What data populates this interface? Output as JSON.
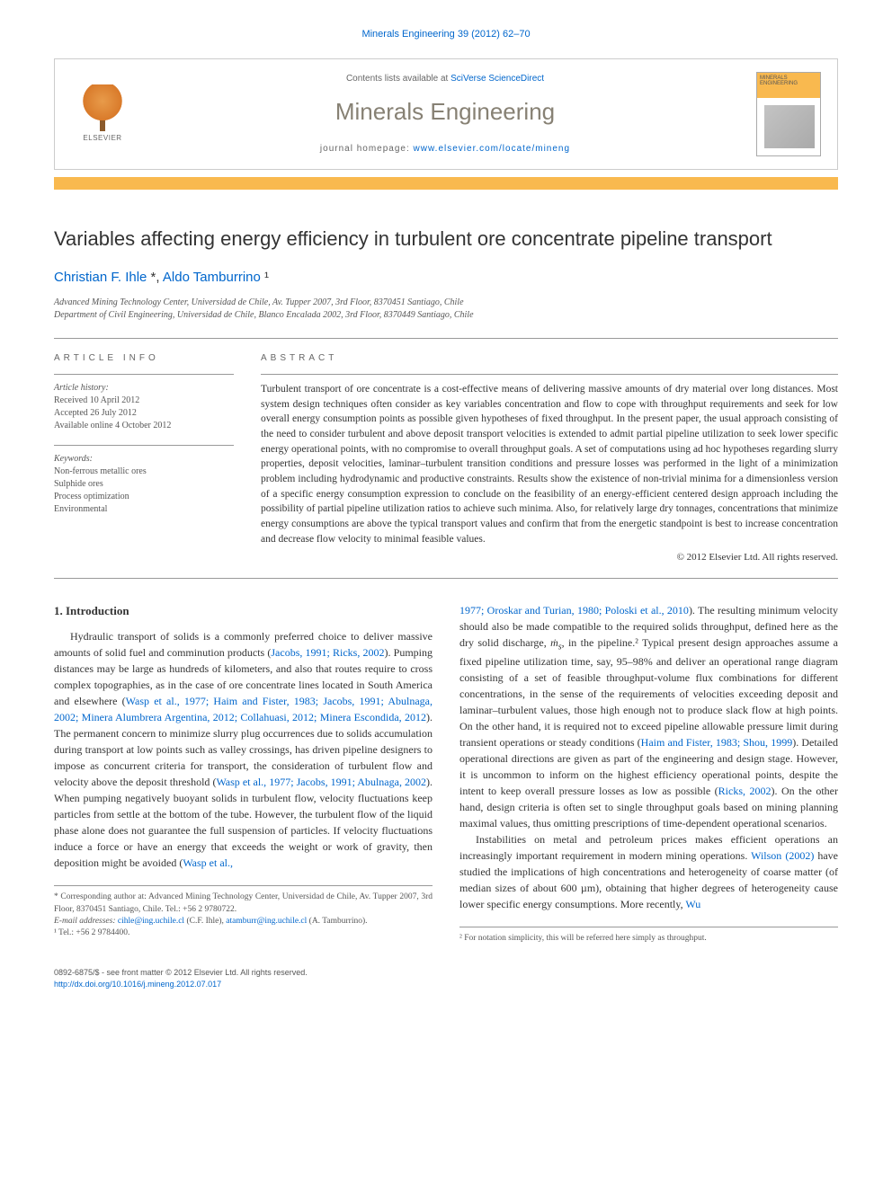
{
  "citation": "Minerals Engineering 39 (2012) 62–70",
  "header": {
    "contentsPrefix": "Contents lists available at ",
    "contentsLink": "SciVerse ScienceDirect",
    "journal": "Minerals Engineering",
    "homepagePrefix": "journal homepage: ",
    "homepageUrl": "www.elsevier.com/locate/mineng",
    "elsevier": "ELSEVIER",
    "coverTitle": "MINERALS ENGINEERING"
  },
  "title": "Variables affecting energy efficiency in turbulent ore concentrate pipeline transport",
  "authors": "Christian F. Ihle *, Aldo Tamburrino ¹",
  "affiliations": [
    "Advanced Mining Technology Center, Universidad de Chile, Av. Tupper 2007, 3rd Floor, 8370451 Santiago, Chile",
    "Department of Civil Engineering, Universidad de Chile, Blanco Encalada 2002, 3rd Floor, 8370449 Santiago, Chile"
  ],
  "labels": {
    "articleInfo": "ARTICLE INFO",
    "abstract": "ABSTRACT",
    "history": "Article history:",
    "keywords": "Keywords:"
  },
  "history": {
    "received": "Received 10 April 2012",
    "accepted": "Accepted 26 July 2012",
    "online": "Available online 4 October 2012"
  },
  "keywords": [
    "Non-ferrous metallic ores",
    "Sulphide ores",
    "Process optimization",
    "Environmental"
  ],
  "abstract": "Turbulent transport of ore concentrate is a cost-effective means of delivering massive amounts of dry material over long distances. Most system design techniques often consider as key variables concentration and flow to cope with throughput requirements and seek for low overall energy consumption points as possible given hypotheses of fixed throughput. In the present paper, the usual approach consisting of the need to consider turbulent and above deposit transport velocities is extended to admit partial pipeline utilization to seek lower specific energy operational points, with no compromise to overall throughput goals. A set of computations using ad hoc hypotheses regarding slurry properties, deposit velocities, laminar–turbulent transition conditions and pressure losses was performed in the light of a minimization problem including hydrodynamic and productive constraints. Results show the existence of non-trivial minima for a dimensionless version of a specific energy consumption expression to conclude on the feasibility of an energy-efficient centered design approach including the possibility of partial pipeline utilization ratios to achieve such minima. Also, for relatively large dry tonnages, concentrations that minimize energy consumptions are above the typical transport values and confirm that from the energetic standpoint is best to increase concentration and decrease flow velocity to minimal feasible values.",
  "copyright": "© 2012 Elsevier Ltd. All rights reserved.",
  "section1": {
    "heading": "1. Introduction",
    "leftColHTML": "Hydraulic transport of solids is a commonly preferred choice to deliver massive amounts of solid fuel and comminution products (<span class='link'>Jacobs, 1991; Ricks, 2002</span>). Pumping distances may be large as hundreds of kilometers, and also that routes require to cross complex topographies, as in the case of ore concentrate lines located in South America and elsewhere (<span class='link'>Wasp et al., 1977; Haim and Fister, 1983; Jacobs, 1991; Abulnaga, 2002; Minera Alumbrera Argentina, 2012; Collahuasi, 2012; Minera Escondida, 2012</span>). The permanent concern to minimize slurry plug occurrences due to solids accumulation during transport at low points such as valley crossings, has driven pipeline designers to impose as concurrent criteria for transport, the consideration of turbulent flow and velocity above the deposit threshold (<span class='link'>Wasp et al., 1977; Jacobs, 1991; Abulnaga, 2002</span>). When pumping negatively buoyant solids in turbulent flow, velocity fluctuations keep particles from settle at the bottom of the tube. However, the turbulent flow of the liquid phase alone does not guarantee the full suspension of particles. If velocity fluctuations induce a force or have an energy that exceeds the weight or work of gravity, then deposition might be avoided (<span class='link'>Wasp et al.,</span>",
    "rightColHTML": "<span class='link'>1977; Oroskar and Turian, 1980; Poloski et al., 2010</span>). The resulting minimum velocity should also be made compatible to the required solids throughput, defined here as the dry solid discharge, <i>ṁ<sub>s</sub></i>, in the pipeline.² Typical present design approaches assume a fixed pipeline utilization time, say, 95–98% and deliver an operational range diagram consisting of a set of feasible throughput-volume flux combinations for different concentrations, in the sense of the requirements of velocities exceeding deposit and laminar–turbulent values, those high enough not to produce slack flow at high points. On the other hand, it is required not to exceed pipeline allowable pressure limit during transient operations or steady conditions (<span class='link'>Haim and Fister, 1983; Shou, 1999</span>). Detailed operational directions are given as part of the engineering and design stage. However, it is uncommon to inform on the highest efficiency operational points, despite the intent to keep overall pressure losses as low as possible (<span class='link'>Ricks, 2002</span>). On the other hand, design criteria is often set to single throughput goals based on mining planning maximal values, thus omitting prescriptions of time-dependent operational scenarios.",
    "rightColP2": "Instabilities on metal and petroleum prices makes efficient operations an increasingly important requirement in modern mining operations. <span class='link'>Wilson (2002)</span> have studied the implications of high concentrations and heterogeneity of coarse matter (of median sizes of about 600 µm), obtaining that higher degrees of heterogeneity cause lower specific energy consumptions. More recently, <span class='link'>Wu</span>"
  },
  "footnotes": {
    "corresponding": "* Corresponding author at: Advanced Mining Technology Center, Universidad de Chile, Av. Tupper 2007, 3rd Floor, 8370451 Santiago, Chile. Tel.: +56 2 9780722.",
    "emailsPrefix": "E-mail addresses: ",
    "email1": "cihle@ing.uchile.cl",
    "email1who": " (C.F. Ihle), ",
    "email2": "atamburr@ing.uchile.cl",
    "email2who": " (A. Tamburrino).",
    "tel": "¹ Tel.: +56 2 9784400.",
    "note2": "² For notation simplicity, this will be referred here simply as throughput."
  },
  "bottom": {
    "left1": "0892-6875/$ - see front matter © 2012 Elsevier Ltd. All rights reserved.",
    "left2": "http://dx.doi.org/10.1016/j.mineng.2012.07.017"
  }
}
